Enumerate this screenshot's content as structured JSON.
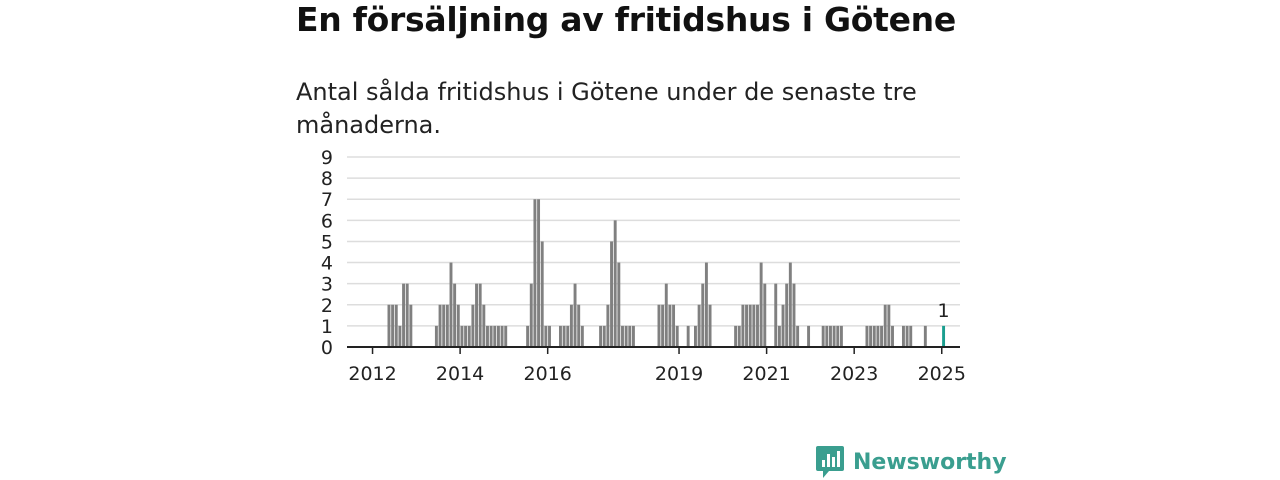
{
  "header": {
    "title": "En försäljning av fritidshus i Götene",
    "subtitle": "Antal sålda fritidshus i Götene under de senaste tre månaderna."
  },
  "colors": {
    "bar": "#808080",
    "highlight": "#1a9e8f",
    "grid": "#dddddd",
    "axis": "#222222",
    "brand": "#3a9e8f"
  },
  "chart_data": {
    "type": "bar",
    "title": "En försäljning av fritidshus i Götene",
    "subtitle": "Antal sålda fritidshus i Götene under de senaste tre månaderna.",
    "xlabel": "",
    "ylabel": "",
    "ylim": [
      0,
      9
    ],
    "yticks": [
      "0",
      "1",
      "2",
      "3",
      "4",
      "5",
      "6",
      "7",
      "8",
      "9"
    ],
    "grid": true,
    "legend": "none",
    "x_range": [
      "2011-06",
      "2025-06"
    ],
    "xticks": [
      {
        "date": "2012-01",
        "label": "2012"
      },
      {
        "date": "2014-01",
        "label": "2014"
      },
      {
        "date": "2016-01",
        "label": "2016"
      },
      {
        "date": "2019-01",
        "label": "2019"
      },
      {
        "date": "2021-01",
        "label": "2021"
      },
      {
        "date": "2023-01",
        "label": "2023"
      },
      {
        "date": "2025-01",
        "label": "2025"
      }
    ],
    "series": [
      {
        "x": [
          "2012-05",
          "2012-06",
          "2012-07",
          "2012-08",
          "2012-09",
          "2012-10",
          "2012-11",
          "2013-06",
          "2013-07",
          "2013-08",
          "2013-09",
          "2013-10",
          "2013-11",
          "2013-12",
          "2014-01",
          "2014-02",
          "2014-03",
          "2014-04",
          "2014-05",
          "2014-06",
          "2014-07",
          "2014-08",
          "2014-09",
          "2014-10",
          "2014-11",
          "2014-12",
          "2015-01",
          "2015-07",
          "2015-08",
          "2015-09",
          "2015-10",
          "2015-11",
          "2015-12",
          "2016-01",
          "2016-04",
          "2016-05",
          "2016-06",
          "2016-07",
          "2016-08",
          "2016-09",
          "2016-10",
          "2017-03",
          "2017-04",
          "2017-05",
          "2017-06",
          "2017-07",
          "2017-08",
          "2017-09",
          "2017-10",
          "2017-11",
          "2017-12",
          "2018-07",
          "2018-08",
          "2018-09",
          "2018-10",
          "2018-11",
          "2018-12",
          "2019-03",
          "2019-05",
          "2019-06",
          "2019-07",
          "2019-08",
          "2019-09",
          "2020-04",
          "2020-05",
          "2020-06",
          "2020-07",
          "2020-08",
          "2020-09",
          "2020-10",
          "2020-11",
          "2020-12",
          "2021-03",
          "2021-04",
          "2021-05",
          "2021-06",
          "2021-07",
          "2021-08",
          "2021-09",
          "2021-12",
          "2022-04",
          "2022-05",
          "2022-06",
          "2022-07",
          "2022-08",
          "2022-09",
          "2023-04",
          "2023-05",
          "2023-06",
          "2023-07",
          "2023-08",
          "2023-09",
          "2023-10",
          "2023-11",
          "2024-02",
          "2024-03",
          "2024-04",
          "2024-08",
          "2025-01"
        ],
        "values": [
          2,
          2,
          2,
          1,
          3,
          3,
          2,
          1,
          2,
          2,
          2,
          4,
          3,
          2,
          1,
          1,
          1,
          2,
          3,
          3,
          2,
          1,
          1,
          1,
          1,
          1,
          1,
          1,
          3,
          7,
          7,
          5,
          1,
          1,
          1,
          1,
          1,
          2,
          3,
          2,
          1,
          1,
          1,
          2,
          5,
          6,
          4,
          1,
          1,
          1,
          1,
          2,
          2,
          3,
          2,
          2,
          1,
          1,
          1,
          2,
          3,
          4,
          2,
          1,
          1,
          2,
          2,
          2,
          2,
          2,
          4,
          3,
          3,
          1,
          2,
          3,
          4,
          3,
          1,
          1,
          1,
          1,
          1,
          1,
          1,
          1,
          1,
          1,
          1,
          1,
          1,
          2,
          2,
          1,
          1,
          1,
          1,
          1,
          1
        ]
      }
    ],
    "highlight": {
      "x": "2025-01",
      "value": 1,
      "label": "1"
    }
  },
  "brand": {
    "name": "Newsworthy",
    "icon": "newsworthy-logo-icon"
  }
}
